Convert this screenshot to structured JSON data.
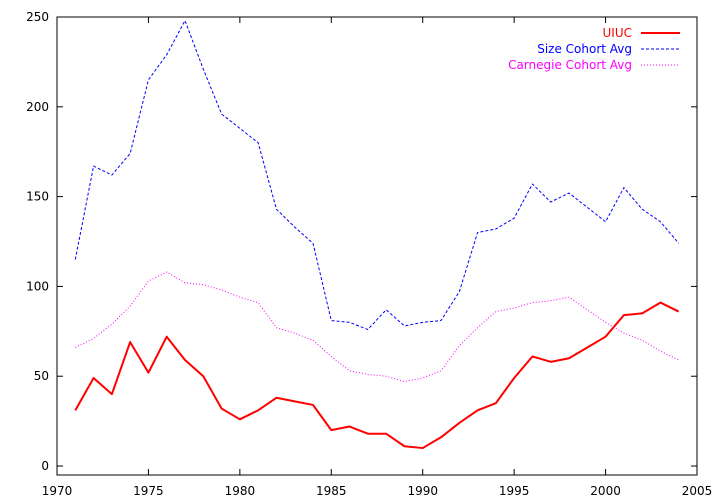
{
  "chart_data": {
    "type": "line",
    "title": "",
    "xlabel": "",
    "ylabel": "",
    "xlim": [
      1970,
      2005
    ],
    "ylim": [
      -5,
      250
    ],
    "x_ticks": [
      1970,
      1975,
      1980,
      1985,
      1990,
      1995,
      2000,
      2005
    ],
    "y_ticks": [
      0,
      50,
      100,
      150,
      200,
      250
    ],
    "grid": false,
    "legend_position": "top-right",
    "x": [
      1971,
      1972,
      1973,
      1974,
      1975,
      1976,
      1977,
      1978,
      1979,
      1980,
      1981,
      1982,
      1983,
      1984,
      1985,
      1986,
      1987,
      1988,
      1989,
      1990,
      1991,
      1992,
      1993,
      1994,
      1995,
      1996,
      1997,
      1998,
      1999,
      2000,
      2001,
      2002,
      2003,
      2004
    ],
    "series": [
      {
        "name": "UIUC",
        "color": "#ff0000",
        "style": "solid",
        "values": [
          31,
          49,
          40,
          69,
          52,
          72,
          59,
          50,
          32,
          26,
          31,
          38,
          36,
          34,
          20,
          22,
          18,
          18,
          11,
          10,
          16,
          24,
          31,
          35,
          49,
          61,
          58,
          60,
          66,
          72,
          84,
          85,
          91,
          86
        ]
      },
      {
        "name": "Size Cohort Avg",
        "color": "#0000ff",
        "style": "dashed",
        "values": [
          115,
          167,
          162,
          174,
          215,
          229,
          248,
          221,
          196,
          188,
          180,
          143,
          133,
          124,
          81,
          80,
          76,
          87,
          78,
          80,
          81,
          97,
          130,
          132,
          138,
          157,
          147,
          152,
          144,
          136,
          155,
          143,
          136,
          124
        ]
      },
      {
        "name": "Carnegie Cohort Avg",
        "color": "#ff00ff",
        "style": "dotted",
        "values": [
          66,
          71,
          79,
          89,
          103,
          108,
          102,
          101,
          98,
          94,
          91,
          77,
          74,
          70,
          61,
          53,
          51,
          50,
          47,
          49,
          53,
          67,
          77,
          86,
          88,
          91,
          92,
          94,
          87,
          80,
          74,
          70,
          64,
          59
        ]
      }
    ]
  }
}
